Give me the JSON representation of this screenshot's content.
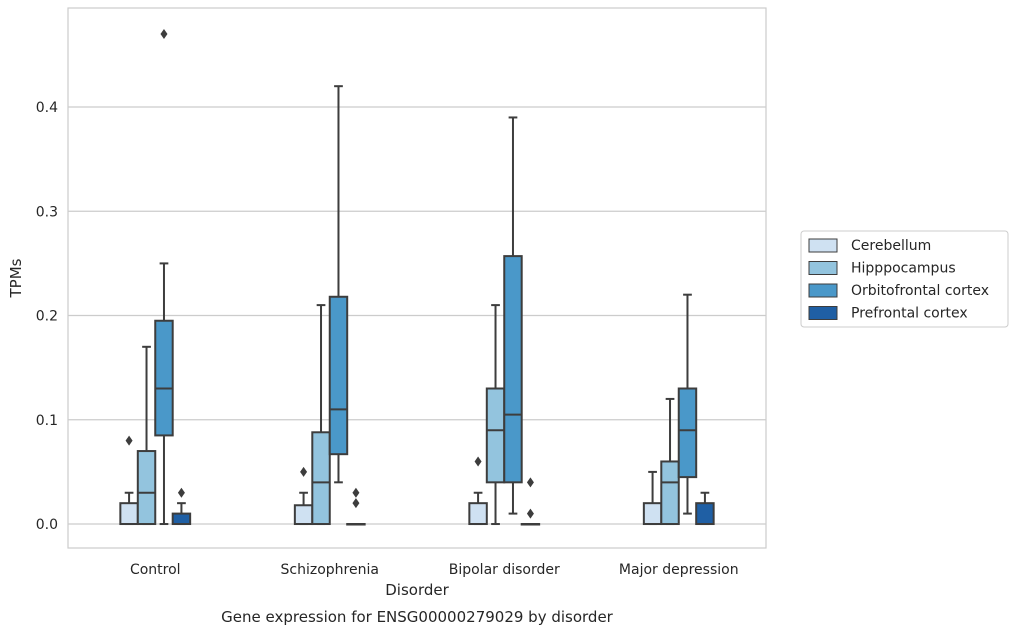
{
  "chart_data": {
    "type": "box",
    "title": "",
    "caption": "Gene expression for ENSG00000279029 by disorder",
    "xlabel": "Disorder",
    "ylabel": "TPMs",
    "ylim": [
      -0.023,
      0.495
    ],
    "yticks": [
      0.0,
      0.1,
      0.2,
      0.3,
      0.4
    ],
    "ytick_labels": [
      "0.0",
      "0.1",
      "0.2",
      "0.3",
      "0.4"
    ],
    "grid": "horizontal",
    "legend_position": "right",
    "categories": [
      "Control",
      "Schizophrenia",
      "Bipolar disorder",
      "Major depression"
    ],
    "series": [
      {
        "name": "Cerebellum",
        "color": "#cfe1f2",
        "boxes": [
          {
            "whisker_low": 0.0,
            "q1": 0.0,
            "median": 0.0,
            "q3": 0.02,
            "whisker_high": 0.03,
            "outliers": [
              0.08
            ]
          },
          {
            "whisker_low": 0.0,
            "q1": 0.0,
            "median": 0.0,
            "q3": 0.018,
            "whisker_high": 0.03,
            "outliers": [
              0.05
            ]
          },
          {
            "whisker_low": 0.0,
            "q1": 0.0,
            "median": 0.0,
            "q3": 0.02,
            "whisker_high": 0.03,
            "outliers": [
              0.06
            ]
          },
          {
            "whisker_low": 0.0,
            "q1": 0.0,
            "median": 0.0,
            "q3": 0.02,
            "whisker_high": 0.05,
            "outliers": []
          }
        ]
      },
      {
        "name": "Hipppocampus",
        "color": "#93c4de",
        "boxes": [
          {
            "whisker_low": 0.0,
            "q1": 0.0,
            "median": 0.03,
            "q3": 0.07,
            "whisker_high": 0.17,
            "outliers": []
          },
          {
            "whisker_low": 0.0,
            "q1": 0.0,
            "median": 0.04,
            "q3": 0.088,
            "whisker_high": 0.21,
            "outliers": []
          },
          {
            "whisker_low": 0.0,
            "q1": 0.04,
            "median": 0.09,
            "q3": 0.13,
            "whisker_high": 0.21,
            "outliers": []
          },
          {
            "whisker_low": 0.0,
            "q1": 0.0,
            "median": 0.04,
            "q3": 0.06,
            "whisker_high": 0.12,
            "outliers": []
          }
        ]
      },
      {
        "name": "Orbitofrontal cortex",
        "color": "#4a98c9",
        "boxes": [
          {
            "whisker_low": 0.0,
            "q1": 0.085,
            "median": 0.13,
            "q3": 0.195,
            "whisker_high": 0.25,
            "outliers": [
              0.47
            ]
          },
          {
            "whisker_low": 0.04,
            "q1": 0.067,
            "median": 0.11,
            "q3": 0.218,
            "whisker_high": 0.42,
            "outliers": []
          },
          {
            "whisker_low": 0.01,
            "q1": 0.04,
            "median": 0.105,
            "q3": 0.257,
            "whisker_high": 0.39,
            "outliers": []
          },
          {
            "whisker_low": 0.01,
            "q1": 0.045,
            "median": 0.09,
            "q3": 0.13,
            "whisker_high": 0.22,
            "outliers": []
          }
        ]
      },
      {
        "name": "Prefrontal cortex",
        "color": "#1f5fa4",
        "boxes": [
          {
            "whisker_low": 0.0,
            "q1": 0.0,
            "median": 0.0,
            "q3": 0.01,
            "whisker_high": 0.02,
            "outliers": [
              0.03
            ]
          },
          {
            "whisker_low": 0.0,
            "q1": 0.0,
            "median": 0.0,
            "q3": 0.0,
            "whisker_high": 0.0,
            "outliers": [
              0.03,
              0.02
            ]
          },
          {
            "whisker_low": 0.0,
            "q1": 0.0,
            "median": 0.0,
            "q3": 0.0,
            "whisker_high": 0.0,
            "outliers": [
              0.04,
              0.01
            ]
          },
          {
            "whisker_low": 0.0,
            "q1": 0.0,
            "median": 0.0,
            "q3": 0.02,
            "whisker_high": 0.03,
            "outliers": []
          }
        ]
      }
    ]
  }
}
